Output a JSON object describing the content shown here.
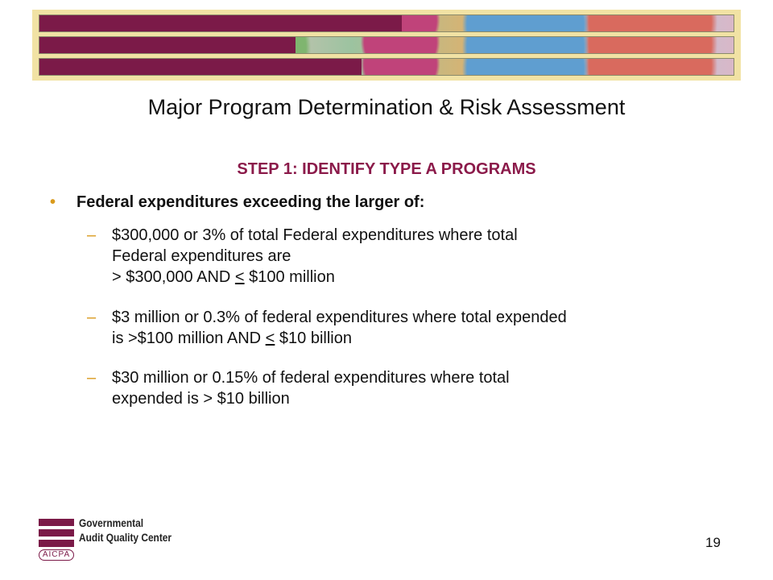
{
  "slide": {
    "title": "Major Program Determination & Risk Assessment",
    "step_heading": "STEP 1: IDENTIFY TYPE A PROGRAMS",
    "bullet": "Federal expenditures exceeding the larger of:",
    "sub_items": [
      {
        "line1": "$300,000 or 3% of total Federal expenditures where total",
        "line2": "Federal expenditures are",
        "line3_pre": "> $300,000 AND ",
        "line3_sym": "<",
        "line3_post": " $100 million"
      },
      {
        "line1": "$3 million or 0.3% of federal expenditures where total expended",
        "line2_pre": "is >$100 million AND ",
        "line2_sym": "<",
        "line2_post": " $10 billion"
      },
      {
        "line1": "$30 million or 0.15% of federal expenditures where total",
        "line2": "expended is > $10 billion"
      }
    ],
    "bullet_marker": "•",
    "dash_marker": "–",
    "page_number": "19"
  },
  "logo": {
    "line1": "Governmental",
    "line2": "Audit Quality Center",
    "badge": "AICPA"
  },
  "colors": {
    "accent_maroon": "#7b1a48",
    "heading_maroon": "#8b1a4a",
    "marker_gold": "#d99a1c",
    "banner_bg": "#f1e2a4"
  }
}
